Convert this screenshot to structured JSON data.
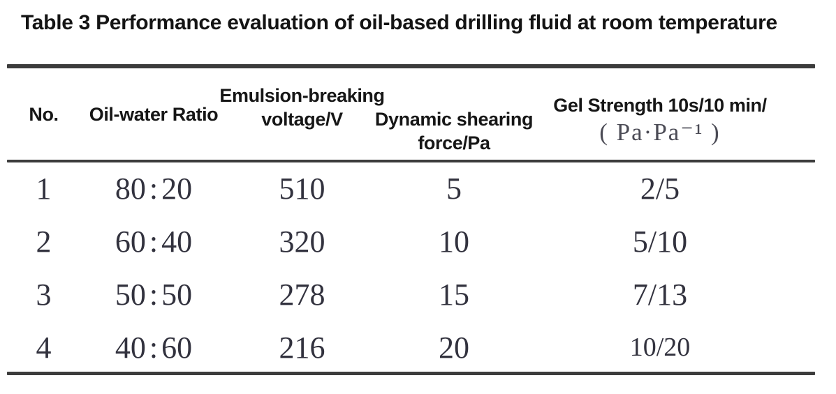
{
  "title": "Table 3 Performance evaluation of oil-based drilling fluid at room temperature",
  "colors": {
    "background": "#ffffff",
    "rule": "#3c3c3c",
    "heading_text": "#161616",
    "body_text": "#32323e",
    "gel_unit_text": "#4b4b55"
  },
  "table": {
    "headers": {
      "no": "No.",
      "oil_water_ratio": "Oil-water Ratio",
      "voltage_line1": "Emulsion-breaking",
      "voltage_line2": "voltage/V",
      "shear_line1": "Dynamic shearing",
      "shear_line2": "force/Pa",
      "gel_line1": "Gel Strength 10s/10 min/",
      "gel_line2": "( Pa·Pa⁻¹ )"
    },
    "rows": [
      {
        "no": "1",
        "oil_water_ratio": "80 : 20",
        "voltage": "510",
        "shear": "5",
        "gel": "2/5"
      },
      {
        "no": "2",
        "oil_water_ratio": "60 : 40",
        "voltage": "320",
        "shear": "10",
        "gel": "5/10"
      },
      {
        "no": "3",
        "oil_water_ratio": "50 : 50",
        "voltage": "278",
        "shear": "15",
        "gel": "7/13"
      },
      {
        "no": "4",
        "oil_water_ratio": "40 : 60",
        "voltage": "216",
        "shear": "20",
        "gel": "10/20"
      }
    ]
  },
  "chart_data": {
    "type": "table",
    "title": "Table 3 Performance evaluation of oil-based drilling fluid at room temperature",
    "columns": [
      "No.",
      "Oil-water Ratio",
      "Emulsion-breaking voltage/V",
      "Dynamic shearing force/Pa",
      "Gel Strength 10s/10 min/ (Pa·Pa⁻¹)"
    ],
    "rows": [
      [
        "1",
        "80:20",
        510,
        5,
        "2/5"
      ],
      [
        "2",
        "60:40",
        320,
        10,
        "5/10"
      ],
      [
        "3",
        "50:50",
        278,
        15,
        "7/13"
      ],
      [
        "4",
        "40:60",
        216,
        20,
        "10/20"
      ]
    ]
  }
}
